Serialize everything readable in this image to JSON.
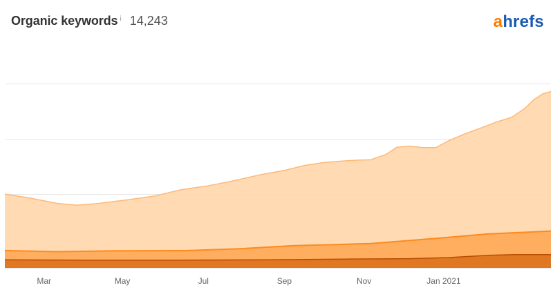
{
  "header": {
    "title": "Organic keywords",
    "info_icon": "i",
    "count": "14,243"
  },
  "logo": {
    "first": "a",
    "rest": "hrefs",
    "colors": {
      "accent": "#ff7a00",
      "brand": "#1c5bb3"
    }
  },
  "chart_data": {
    "type": "area",
    "title": "Organic keywords",
    "xlabel": "",
    "ylabel": "",
    "x_tick_labels": [
      "Mar",
      "May",
      "Jul",
      "Sep",
      "Nov",
      "Jan 2021"
    ],
    "grid": true,
    "stacked": true,
    "y_gridline_count": 3,
    "y_tick_labels_shown": false,
    "colors": {
      "top": "#ffd4a6",
      "top_line": "#ffb877",
      "middle": "#ff9a3c",
      "middle_line": "#ff8a1c",
      "bottom": "#d25f0a",
      "bottom_line": "#b94d00",
      "grid": "#e6e6e6"
    },
    "series": [
      {
        "values": [
          [
            0,
            2.0
          ],
          [
            18,
            1.9
          ],
          [
            40,
            1.75
          ],
          [
            55,
            1.7
          ],
          [
            70,
            1.74
          ],
          [
            95,
            1.85
          ],
          [
            115,
            1.95
          ],
          [
            135,
            2.12
          ],
          [
            155,
            2.22
          ],
          [
            175,
            2.36
          ],
          [
            195,
            2.52
          ],
          [
            215,
            2.65
          ],
          [
            230,
            2.78
          ],
          [
            245,
            2.86
          ],
          [
            260,
            2.9
          ],
          [
            270,
            2.92
          ],
          [
            280,
            2.93
          ],
          [
            292,
            3.08
          ],
          [
            300,
            3.27
          ],
          [
            310,
            3.3
          ],
          [
            320,
            3.26
          ],
          [
            330,
            3.26
          ],
          [
            340,
            3.45
          ],
          [
            352,
            3.63
          ],
          [
            365,
            3.8
          ],
          [
            376,
            3.95
          ],
          [
            388,
            4.08
          ],
          [
            398,
            4.32
          ],
          [
            405,
            4.56
          ],
          [
            412,
            4.72
          ],
          [
            418,
            4.78
          ]
        ]
      },
      {
        "values": [
          [
            0,
            0.47
          ],
          [
            40,
            0.44
          ],
          [
            80,
            0.46
          ],
          [
            140,
            0.47
          ],
          [
            180,
            0.52
          ],
          [
            220,
            0.6
          ],
          [
            280,
            0.66
          ],
          [
            330,
            0.8
          ],
          [
            370,
            0.92
          ],
          [
            400,
            0.97
          ],
          [
            418,
            1.0
          ]
        ]
      },
      {
        "values": [
          [
            0,
            0.22
          ],
          [
            60,
            0.21
          ],
          [
            120,
            0.21
          ],
          [
            200,
            0.22
          ],
          [
            260,
            0.24
          ],
          [
            310,
            0.25
          ],
          [
            340,
            0.28
          ],
          [
            370,
            0.34
          ],
          [
            390,
            0.36
          ],
          [
            418,
            0.36
          ]
        ]
      }
    ],
    "x_ticks": [
      30,
      90,
      152,
      214,
      275,
      336
    ],
    "xlim": [
      0,
      418
    ],
    "ylim": [
      0,
      5.8
    ]
  }
}
